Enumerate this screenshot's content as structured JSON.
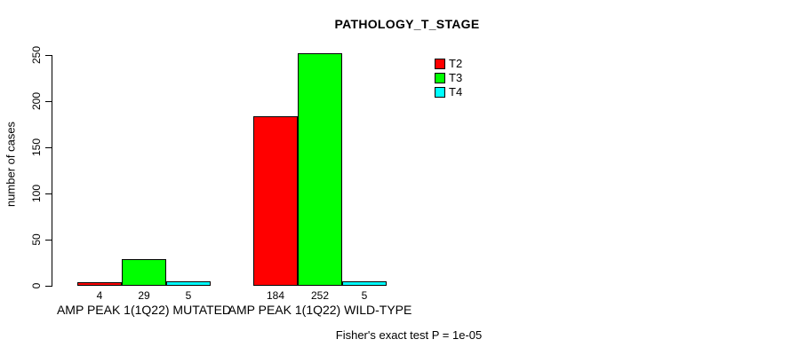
{
  "chart_data": {
    "type": "bar",
    "title": "PATHOLOGY_T_STAGE",
    "ylabel": "number of cases",
    "xlabel": "",
    "ylim": [
      0,
      250
    ],
    "yticks": [
      0,
      50,
      100,
      150,
      200,
      250
    ],
    "grid": false,
    "legend_position": "top-right",
    "categories": [
      "AMP PEAK 1(1Q22) MUTATED",
      "AMP PEAK 1(1Q22) WILD-TYPE"
    ],
    "series": [
      {
        "name": "T2",
        "color": "#ff0000",
        "values": [
          4,
          184
        ]
      },
      {
        "name": "T3",
        "color": "#00ff00",
        "values": [
          29,
          252
        ]
      },
      {
        "name": "T4",
        "color": "#00ffff",
        "values": [
          5,
          5
        ]
      }
    ],
    "bar_value_labels": [
      [
        "4",
        "29",
        "5"
      ],
      [
        "184",
        "252",
        "5"
      ]
    ],
    "annotation": "Fisher's exact test P = 1e-05"
  }
}
